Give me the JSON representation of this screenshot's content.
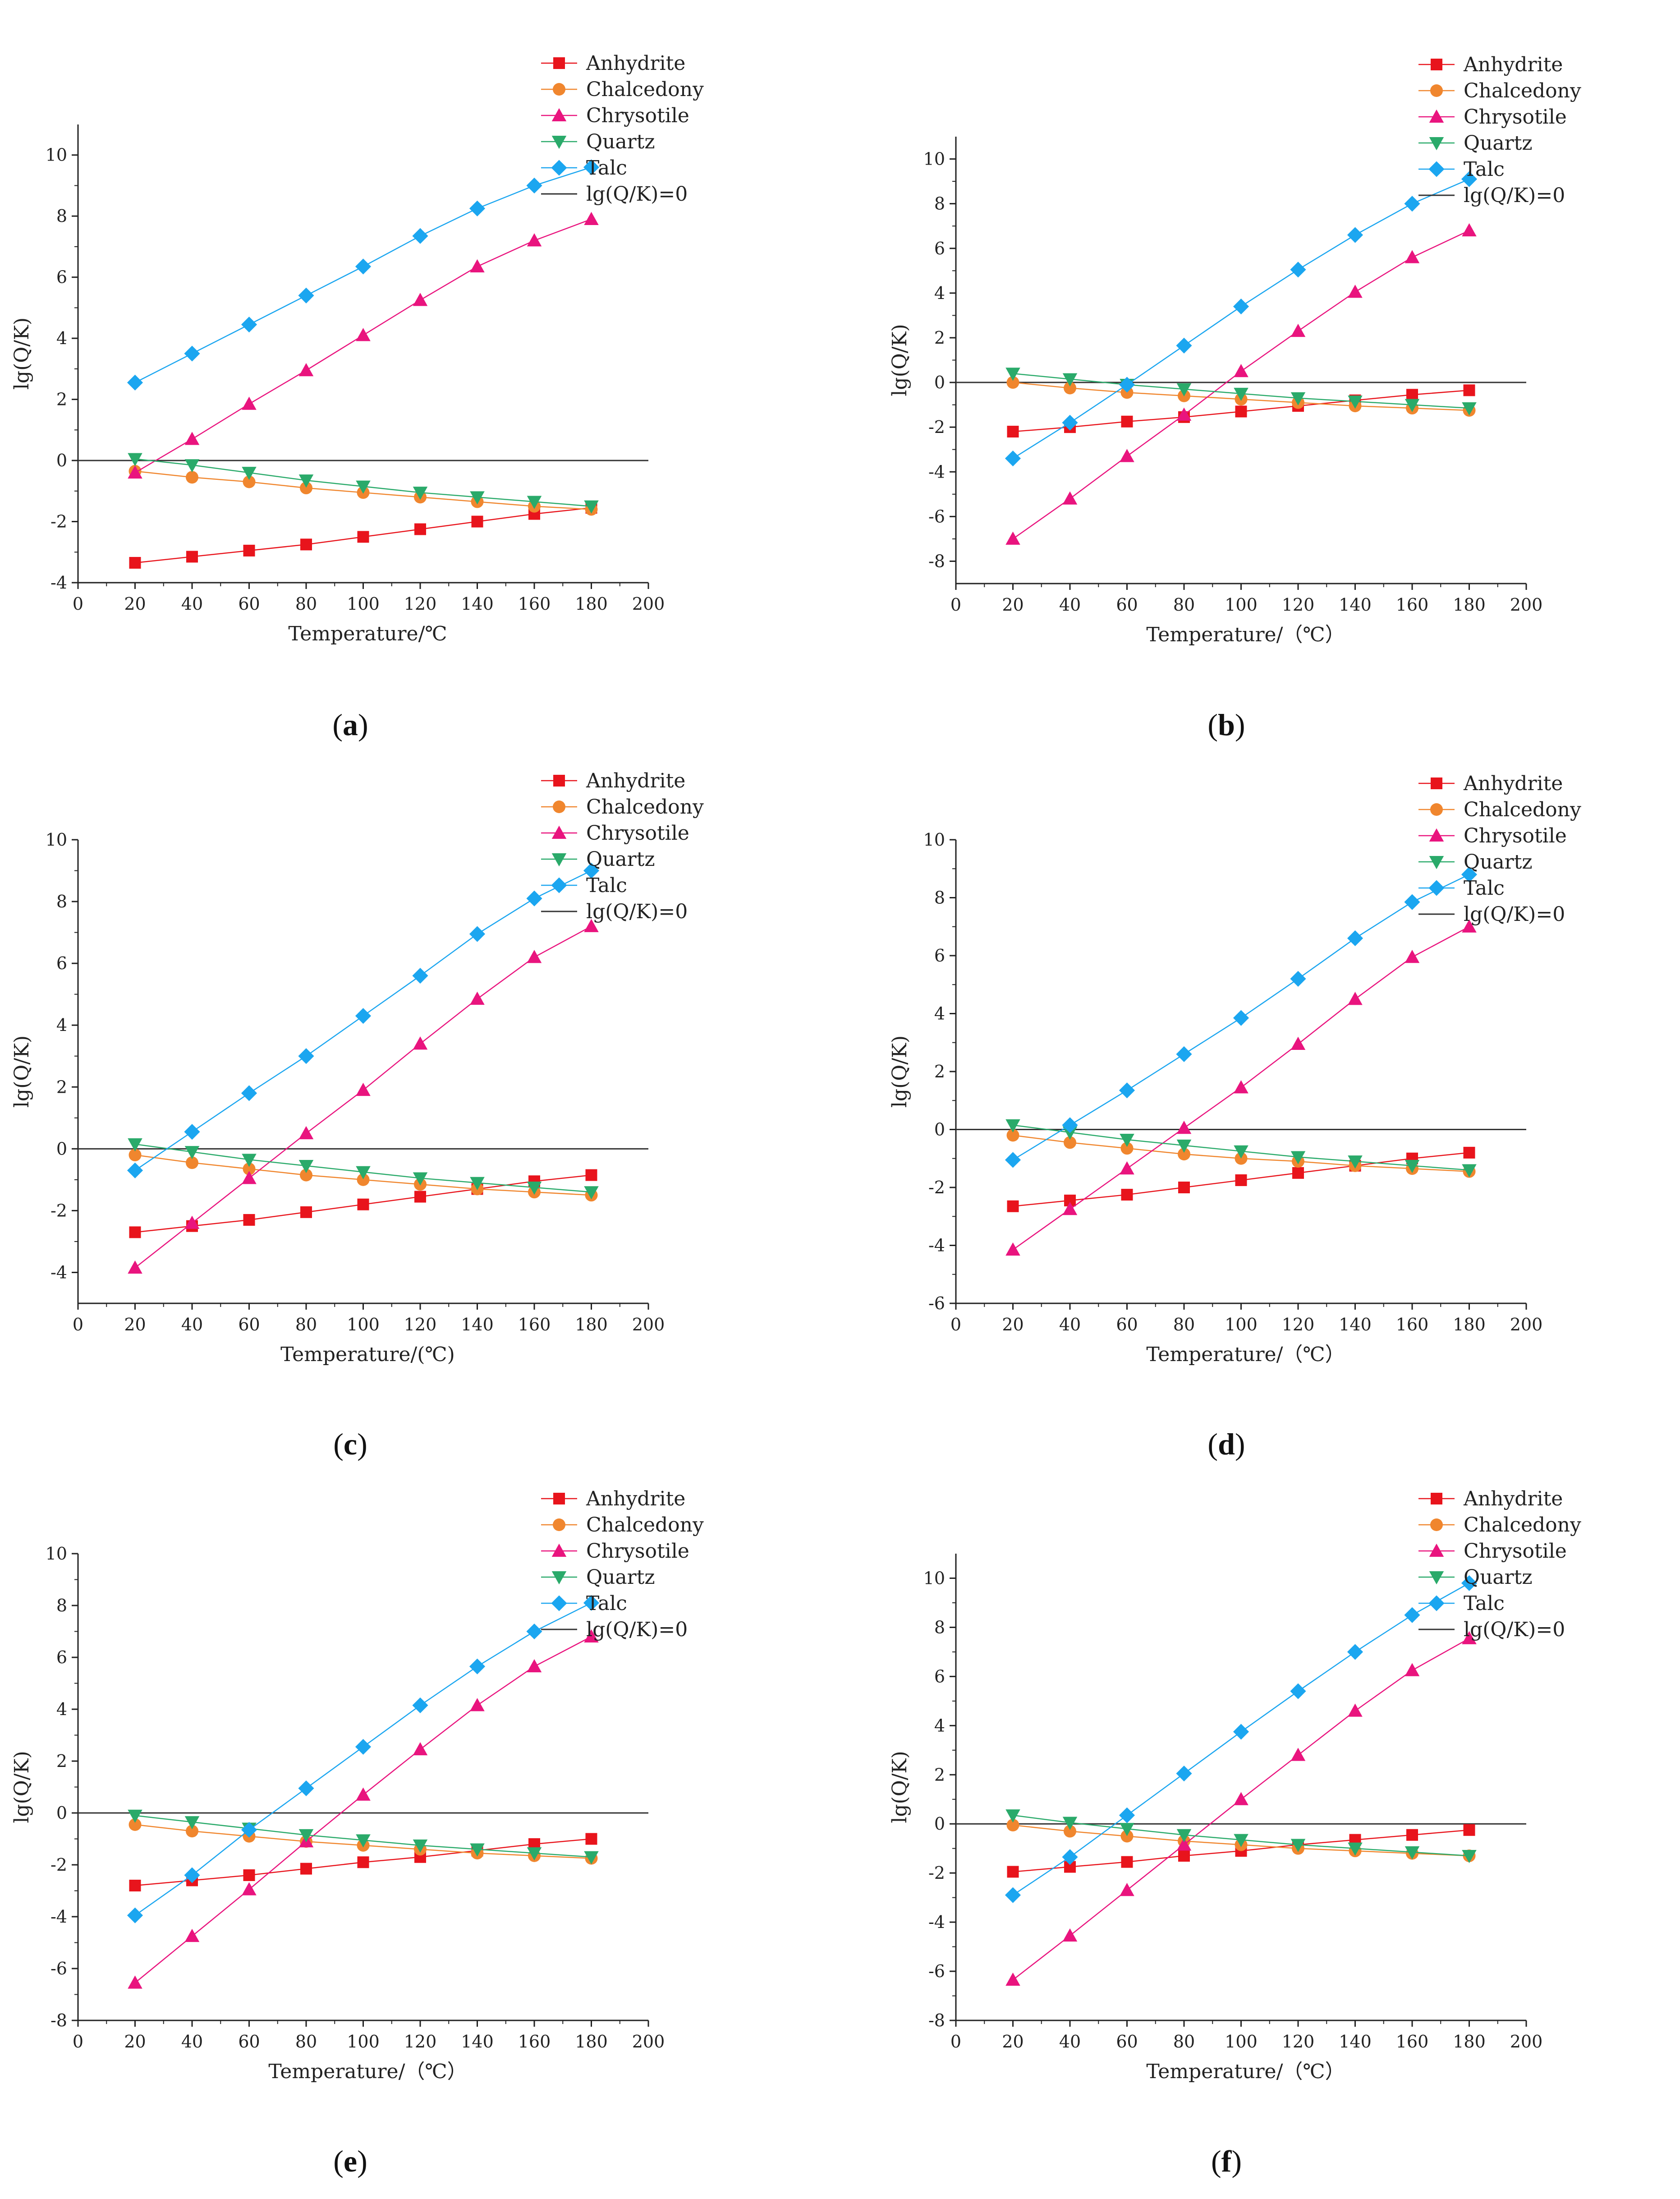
{
  "figure": {
    "series_names": [
      "Anhydrite",
      "Chalcedony",
      "Chrysotile",
      "Quartz",
      "Talc"
    ],
    "reference_line_label": "lg(Q/K)=0",
    "colors": {
      "Anhydrite": "#e8141c",
      "Chalcedony": "#f0862e",
      "Chrysotile": "#e9147e",
      "Quartz": "#2aaa6a",
      "Talc": "#1ba6f0",
      "reference": "#333333"
    },
    "markers": {
      "Anhydrite": "square",
      "Chalcedony": "circle",
      "Chrysotile": "triangle-up",
      "Quartz": "triangle-down",
      "Talc": "diamond"
    }
  },
  "chart_data": [
    {
      "type": "line",
      "panel_label": "a",
      "ylabel": "lg(Q/K)",
      "xlabel": "Temperature/℃",
      "xlim": [
        0,
        200
      ],
      "ylim": [
        -4,
        11
      ],
      "xticks": [
        0,
        20,
        40,
        60,
        80,
        100,
        120,
        140,
        160,
        180,
        200
      ],
      "yticks": [
        -4,
        -2,
        0,
        2,
        4,
        6,
        8,
        10
      ],
      "x": [
        20,
        40,
        60,
        80,
        100,
        120,
        140,
        160,
        180
      ],
      "series": [
        {
          "name": "Anhydrite",
          "values": [
            -3.35,
            -3.15,
            -2.95,
            -2.75,
            -2.5,
            -2.25,
            -2.0,
            -1.75,
            -1.55
          ]
        },
        {
          "name": "Chalcedony",
          "values": [
            -0.35,
            -0.55,
            -0.7,
            -0.9,
            -1.05,
            -1.2,
            -1.35,
            -1.5,
            -1.6
          ]
        },
        {
          "name": "Chrysotile",
          "values": [
            -0.4,
            0.7,
            1.85,
            2.95,
            4.1,
            5.25,
            6.35,
            7.2,
            7.9
          ]
        },
        {
          "name": "Quartz",
          "values": [
            0.05,
            -0.15,
            -0.4,
            -0.65,
            -0.85,
            -1.05,
            -1.2,
            -1.35,
            -1.5
          ]
        },
        {
          "name": "Talc",
          "values": [
            2.55,
            3.5,
            4.45,
            5.4,
            6.35,
            7.35,
            8.25,
            9.0,
            9.6
          ]
        }
      ]
    },
    {
      "type": "line",
      "panel_label": "b",
      "ylabel": "lg(Q/K)",
      "xlabel": "Temperature/（℃）",
      "xlim": [
        0,
        200
      ],
      "ylim": [
        -9,
        11
      ],
      "xticks": [
        0,
        20,
        40,
        60,
        80,
        100,
        120,
        140,
        160,
        180,
        200
      ],
      "yticks": [
        -8,
        -6,
        -4,
        -2,
        0,
        2,
        4,
        6,
        8,
        10
      ],
      "x": [
        20,
        40,
        60,
        80,
        100,
        120,
        140,
        160,
        180
      ],
      "series": [
        {
          "name": "Anhydrite",
          "values": [
            -2.2,
            -2.0,
            -1.75,
            -1.55,
            -1.3,
            -1.05,
            -0.8,
            -0.55,
            -0.35
          ]
        },
        {
          "name": "Chalcedony",
          "values": [
            0.0,
            -0.25,
            -0.45,
            -0.6,
            -0.75,
            -0.9,
            -1.05,
            -1.15,
            -1.25
          ]
        },
        {
          "name": "Chrysotile",
          "values": [
            -7.0,
            -5.2,
            -3.3,
            -1.45,
            0.5,
            2.3,
            4.05,
            5.6,
            6.8
          ]
        },
        {
          "name": "Quartz",
          "values": [
            0.4,
            0.15,
            -0.1,
            -0.3,
            -0.5,
            -0.7,
            -0.85,
            -1.0,
            -1.15
          ]
        },
        {
          "name": "Talc",
          "values": [
            -3.4,
            -1.8,
            -0.1,
            1.65,
            3.4,
            5.05,
            6.6,
            8.0,
            9.1
          ]
        }
      ]
    },
    {
      "type": "line",
      "panel_label": "c",
      "ylabel": "lg(Q/K)",
      "xlabel": "Temperature/(℃)",
      "xlim": [
        0,
        200
      ],
      "ylim": [
        -5,
        10
      ],
      "xticks": [
        0,
        20,
        40,
        60,
        80,
        100,
        120,
        140,
        160,
        180,
        200
      ],
      "yticks": [
        -4,
        -2,
        0,
        2,
        4,
        6,
        8,
        10
      ],
      "x": [
        20,
        40,
        60,
        80,
        100,
        120,
        140,
        160,
        180
      ],
      "series": [
        {
          "name": "Anhydrite",
          "values": [
            -2.7,
            -2.5,
            -2.3,
            -2.05,
            -1.8,
            -1.55,
            -1.3,
            -1.05,
            -0.85
          ]
        },
        {
          "name": "Chalcedony",
          "values": [
            -0.2,
            -0.45,
            -0.65,
            -0.85,
            -1.0,
            -1.15,
            -1.3,
            -1.4,
            -1.5
          ]
        },
        {
          "name": "Chrysotile",
          "values": [
            -3.85,
            -2.4,
            -0.95,
            0.5,
            1.9,
            3.4,
            4.85,
            6.2,
            7.2
          ]
        },
        {
          "name": "Quartz",
          "values": [
            0.15,
            -0.1,
            -0.35,
            -0.55,
            -0.75,
            -0.95,
            -1.1,
            -1.25,
            -1.4
          ]
        },
        {
          "name": "Talc",
          "values": [
            -0.7,
            0.55,
            1.8,
            3.0,
            4.3,
            5.6,
            6.95,
            8.1,
            9.0
          ]
        }
      ]
    },
    {
      "type": "line",
      "panel_label": "d",
      "ylabel": "lg(Q/K)",
      "xlabel": "Temperature/（℃）",
      "xlim": [
        0,
        200
      ],
      "ylim": [
        -6,
        10
      ],
      "xticks": [
        0,
        20,
        40,
        60,
        80,
        100,
        120,
        140,
        160,
        180,
        200
      ],
      "yticks": [
        -6,
        -4,
        -2,
        0,
        2,
        4,
        6,
        8,
        10
      ],
      "x": [
        20,
        40,
        60,
        80,
        100,
        120,
        140,
        160,
        180
      ],
      "series": [
        {
          "name": "Anhydrite",
          "values": [
            -2.65,
            -2.45,
            -2.25,
            -2.0,
            -1.75,
            -1.5,
            -1.25,
            -1.0,
            -0.8
          ]
        },
        {
          "name": "Chalcedony",
          "values": [
            -0.2,
            -0.45,
            -0.65,
            -0.85,
            -1.0,
            -1.1,
            -1.25,
            -1.35,
            -1.45
          ]
        },
        {
          "name": "Chrysotile",
          "values": [
            -4.15,
            -2.75,
            -1.35,
            0.05,
            1.45,
            2.95,
            4.5,
            5.95,
            7.0
          ]
        },
        {
          "name": "Quartz",
          "values": [
            0.15,
            -0.1,
            -0.35,
            -0.55,
            -0.75,
            -0.95,
            -1.1,
            -1.25,
            -1.4
          ]
        },
        {
          "name": "Talc",
          "values": [
            -1.05,
            0.15,
            1.35,
            2.6,
            3.85,
            5.2,
            6.6,
            7.85,
            8.8
          ]
        }
      ]
    },
    {
      "type": "line",
      "panel_label": "e",
      "ylabel": "lg(Q/K)",
      "xlabel": "Temperature/（℃）",
      "xlim": [
        0,
        200
      ],
      "ylim": [
        -8,
        10
      ],
      "xticks": [
        0,
        20,
        40,
        60,
        80,
        100,
        120,
        140,
        160,
        180,
        200
      ],
      "yticks": [
        -8,
        -6,
        -4,
        -2,
        0,
        2,
        4,
        6,
        8,
        10
      ],
      "x": [
        20,
        40,
        60,
        80,
        100,
        120,
        140,
        160,
        180
      ],
      "series": [
        {
          "name": "Anhydrite",
          "values": [
            -2.8,
            -2.6,
            -2.4,
            -2.15,
            -1.9,
            -1.7,
            -1.45,
            -1.2,
            -1.0
          ]
        },
        {
          "name": "Chalcedony",
          "values": [
            -0.45,
            -0.7,
            -0.9,
            -1.1,
            -1.25,
            -1.4,
            -1.55,
            -1.65,
            -1.75
          ]
        },
        {
          "name": "Chrysotile",
          "values": [
            -6.55,
            -4.75,
            -2.95,
            -1.1,
            0.7,
            2.45,
            4.15,
            5.65,
            6.8
          ]
        },
        {
          "name": "Quartz",
          "values": [
            -0.1,
            -0.35,
            -0.6,
            -0.85,
            -1.05,
            -1.25,
            -1.4,
            -1.55,
            -1.7
          ]
        },
        {
          "name": "Talc",
          "values": [
            -3.95,
            -2.4,
            -0.65,
            0.95,
            2.55,
            4.15,
            5.65,
            7.0,
            8.1
          ]
        }
      ]
    },
    {
      "type": "line",
      "panel_label": "f",
      "ylabel": "lg(Q/K)",
      "xlabel": "Temperature/（℃）",
      "xlim": [
        0,
        200
      ],
      "ylim": [
        -8,
        11
      ],
      "xticks": [
        0,
        20,
        40,
        60,
        80,
        100,
        120,
        140,
        160,
        180,
        200
      ],
      "yticks": [
        -8,
        -6,
        -4,
        -2,
        0,
        2,
        4,
        6,
        8,
        10
      ],
      "x": [
        20,
        40,
        60,
        80,
        100,
        120,
        140,
        160,
        180
      ],
      "series": [
        {
          "name": "Anhydrite",
          "values": [
            -1.95,
            -1.75,
            -1.55,
            -1.3,
            -1.1,
            -0.85,
            -0.65,
            -0.45,
            -0.25
          ]
        },
        {
          "name": "Chalcedony",
          "values": [
            -0.05,
            -0.3,
            -0.5,
            -0.7,
            -0.85,
            -1.0,
            -1.1,
            -1.2,
            -1.3
          ]
        },
        {
          "name": "Chrysotile",
          "values": [
            -6.35,
            -4.55,
            -2.7,
            -0.85,
            1.0,
            2.8,
            4.6,
            6.25,
            7.55
          ]
        },
        {
          "name": "Quartz",
          "values": [
            0.35,
            0.05,
            -0.2,
            -0.45,
            -0.65,
            -0.85,
            -1.0,
            -1.15,
            -1.3
          ]
        },
        {
          "name": "Talc",
          "values": [
            -2.9,
            -1.35,
            0.35,
            2.05,
            3.75,
            5.4,
            7.0,
            8.5,
            9.8
          ]
        }
      ]
    }
  ]
}
